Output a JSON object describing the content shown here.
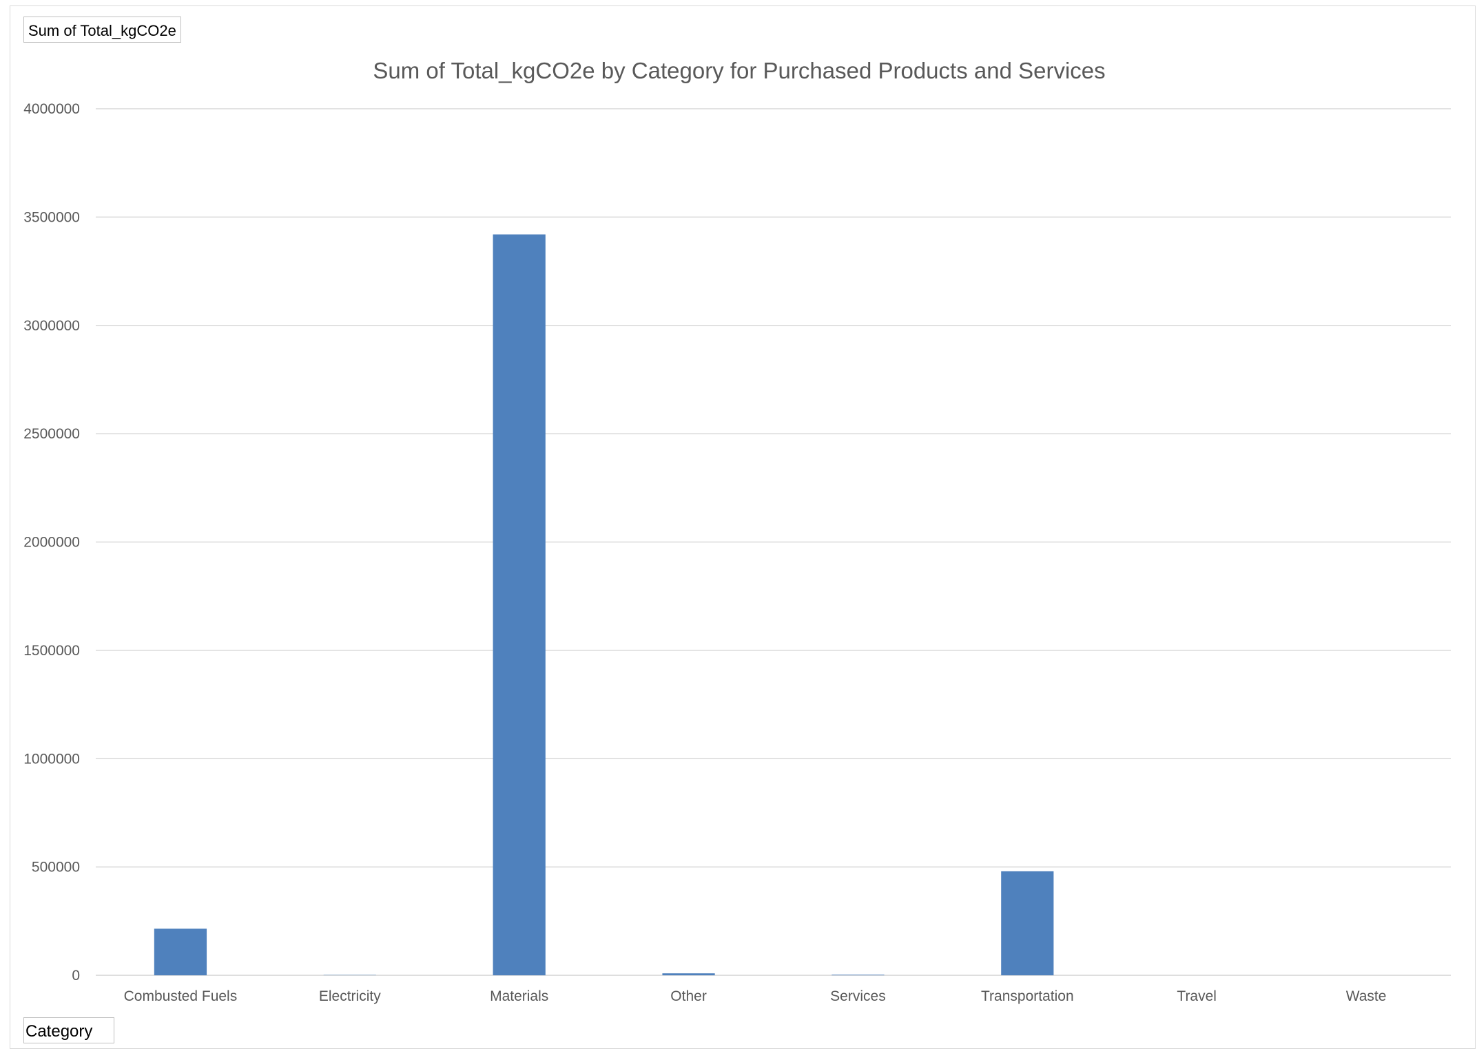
{
  "pivot_fields": {
    "value_field": "Sum of Total_kgCO2e",
    "axis_field": "Category"
  },
  "colors": {
    "bar": "#4f81bd",
    "gridline": "#d9d9d9",
    "text": "#595959"
  },
  "chart_data": {
    "type": "bar",
    "title": "Sum of Total_kgCO2e by Category for Purchased Products and Services",
    "categories": [
      "Combusted Fuels",
      "Electricity",
      "Materials",
      "Other",
      "Services",
      "Transportation",
      "Travel",
      "Waste"
    ],
    "series": [
      {
        "values": [
          215000,
          1500,
          3420000,
          9000,
          3000,
          480000,
          0,
          0
        ]
      }
    ],
    "y_ticks": [
      "0",
      "500000",
      "1000000",
      "1500000",
      "2000000",
      "2500000",
      "3000000",
      "3500000",
      "4000000"
    ],
    "ylim": [
      0,
      4000000
    ],
    "grid": true,
    "legend": "none"
  }
}
